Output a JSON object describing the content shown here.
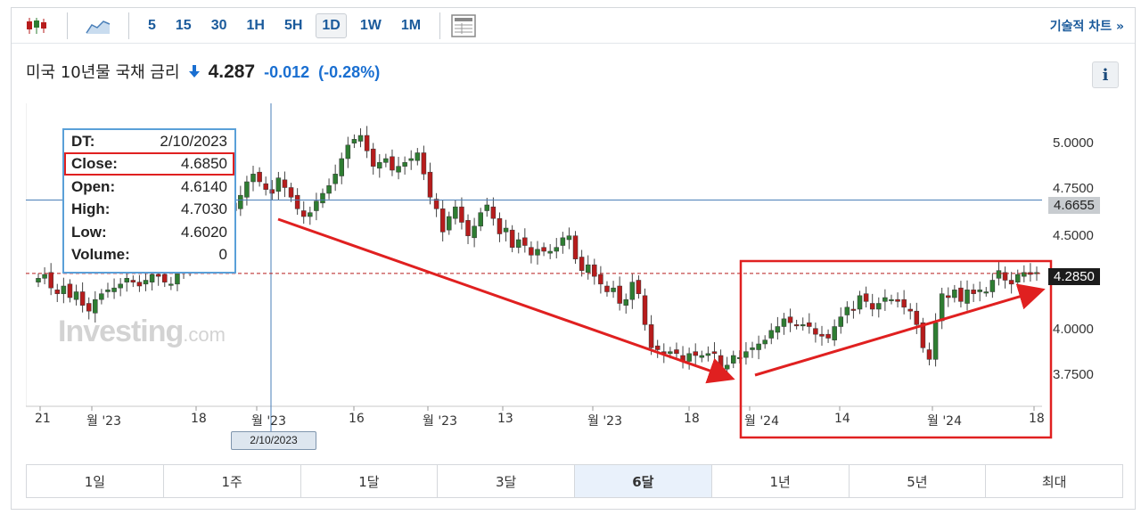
{
  "toolbar": {
    "candles_icon": "candlestick-icon",
    "area_icon": "area-chart-icon",
    "intervals": [
      "5",
      "15",
      "30",
      "1H",
      "5H",
      "1D",
      "1W",
      "1M"
    ],
    "active_interval": "1D",
    "table_icon": "data-table-icon",
    "tech_chart_link": "기술적 차트 »"
  },
  "header": {
    "title": "미국 10년물 국채 금리",
    "price": "4.287",
    "change": "-0.012",
    "change_pct": "(-0.28%)",
    "info_label": "i"
  },
  "tooltip": {
    "dt_label": "DT:",
    "dt_value": "2/10/2023",
    "close_label": "Close:",
    "close_value": "4.6850",
    "open_label": "Open:",
    "open_value": "4.6140",
    "high_label": "High:",
    "high_value": "4.7030",
    "low_label": "Low:",
    "low_value": "4.6020",
    "volume_label": "Volume:",
    "volume_value": "0"
  },
  "watermark": {
    "brand": "Investing",
    "suffix": ".com"
  },
  "crosshair": {
    "date_flag": "2/10/2023",
    "price_tag": "4.6655"
  },
  "last_price_tag": "4.2850",
  "y_axis": [
    "5.0000",
    "4.7500",
    "4.5000",
    "4.0000",
    "3.7500"
  ],
  "x_axis": [
    "21",
    "월 '23",
    "18",
    "월 '23",
    "16",
    "월 '23",
    "13",
    "월 '23",
    "18",
    "월 '24",
    "14",
    "월 '24",
    "18"
  ],
  "ranges": [
    "1일",
    "1주",
    "1달",
    "3달",
    "6달",
    "1년",
    "5년",
    "최대"
  ],
  "active_range": "6달",
  "colors": {
    "up": "#2e7d32",
    "down": "#b71c1c",
    "link": "#1a5a9b",
    "negative": "#1a6fd1",
    "annotation": "#e02020"
  },
  "chart_data": {
    "type": "candlestick",
    "ylim": [
      3.62,
      5.12
    ],
    "closes": [
      4.26,
      4.28,
      4.21,
      4.18,
      4.22,
      4.16,
      4.19,
      4.12,
      4.09,
      4.15,
      4.18,
      4.2,
      4.21,
      4.23,
      4.26,
      4.24,
      4.22,
      4.25,
      4.28,
      4.27,
      4.24,
      4.23,
      4.29,
      4.33,
      4.38,
      4.43,
      4.47,
      4.49,
      4.55,
      4.6,
      4.65,
      4.61,
      4.69,
      4.76,
      4.8,
      4.76,
      4.72,
      4.7,
      4.78,
      4.73,
      4.68,
      4.62,
      4.58,
      4.6,
      4.66,
      4.7,
      4.74,
      4.8,
      4.88,
      4.95,
      4.98,
      5.0,
      4.92,
      4.84,
      4.86,
      4.88,
      4.82,
      4.84,
      4.86,
      4.88,
      4.91,
      4.8,
      4.68,
      4.62,
      4.5,
      4.58,
      4.63,
      4.55,
      4.48,
      4.53,
      4.6,
      4.64,
      4.57,
      4.49,
      4.52,
      4.42,
      4.46,
      4.43,
      4.38,
      4.41,
      4.4,
      4.4,
      4.42,
      4.47,
      4.48,
      4.36,
      4.3,
      4.33,
      4.27,
      4.23,
      4.19,
      4.21,
      4.13,
      4.15,
      4.24,
      4.18,
      4.02,
      3.9,
      3.89,
      3.87,
      3.88,
      3.87,
      3.83,
      3.87,
      3.86,
      3.86,
      3.87,
      3.87,
      3.79,
      3.81,
      3.86,
      3.85,
      3.88,
      3.9,
      3.92,
      3.94,
      3.99,
      4.01,
      4.05,
      4.03,
      4.02,
      4.02,
      4.01,
      3.97,
      3.96,
      3.95,
      4.01,
      4.06,
      4.11,
      4.1,
      4.17,
      4.14,
      4.1,
      4.13,
      4.16,
      4.15,
      4.14,
      4.11,
      4.09,
      4.02,
      3.9,
      3.84,
      4.03,
      4.18,
      4.16,
      4.2,
      4.14,
      4.2,
      4.18,
      4.2,
      4.19,
      4.25,
      4.3,
      4.25,
      4.23,
      4.28,
      4.29,
      4.28,
      4.29
    ],
    "annotations": [
      "downtrend-arrow",
      "uptrend-arrow",
      "recent-range-box"
    ]
  }
}
